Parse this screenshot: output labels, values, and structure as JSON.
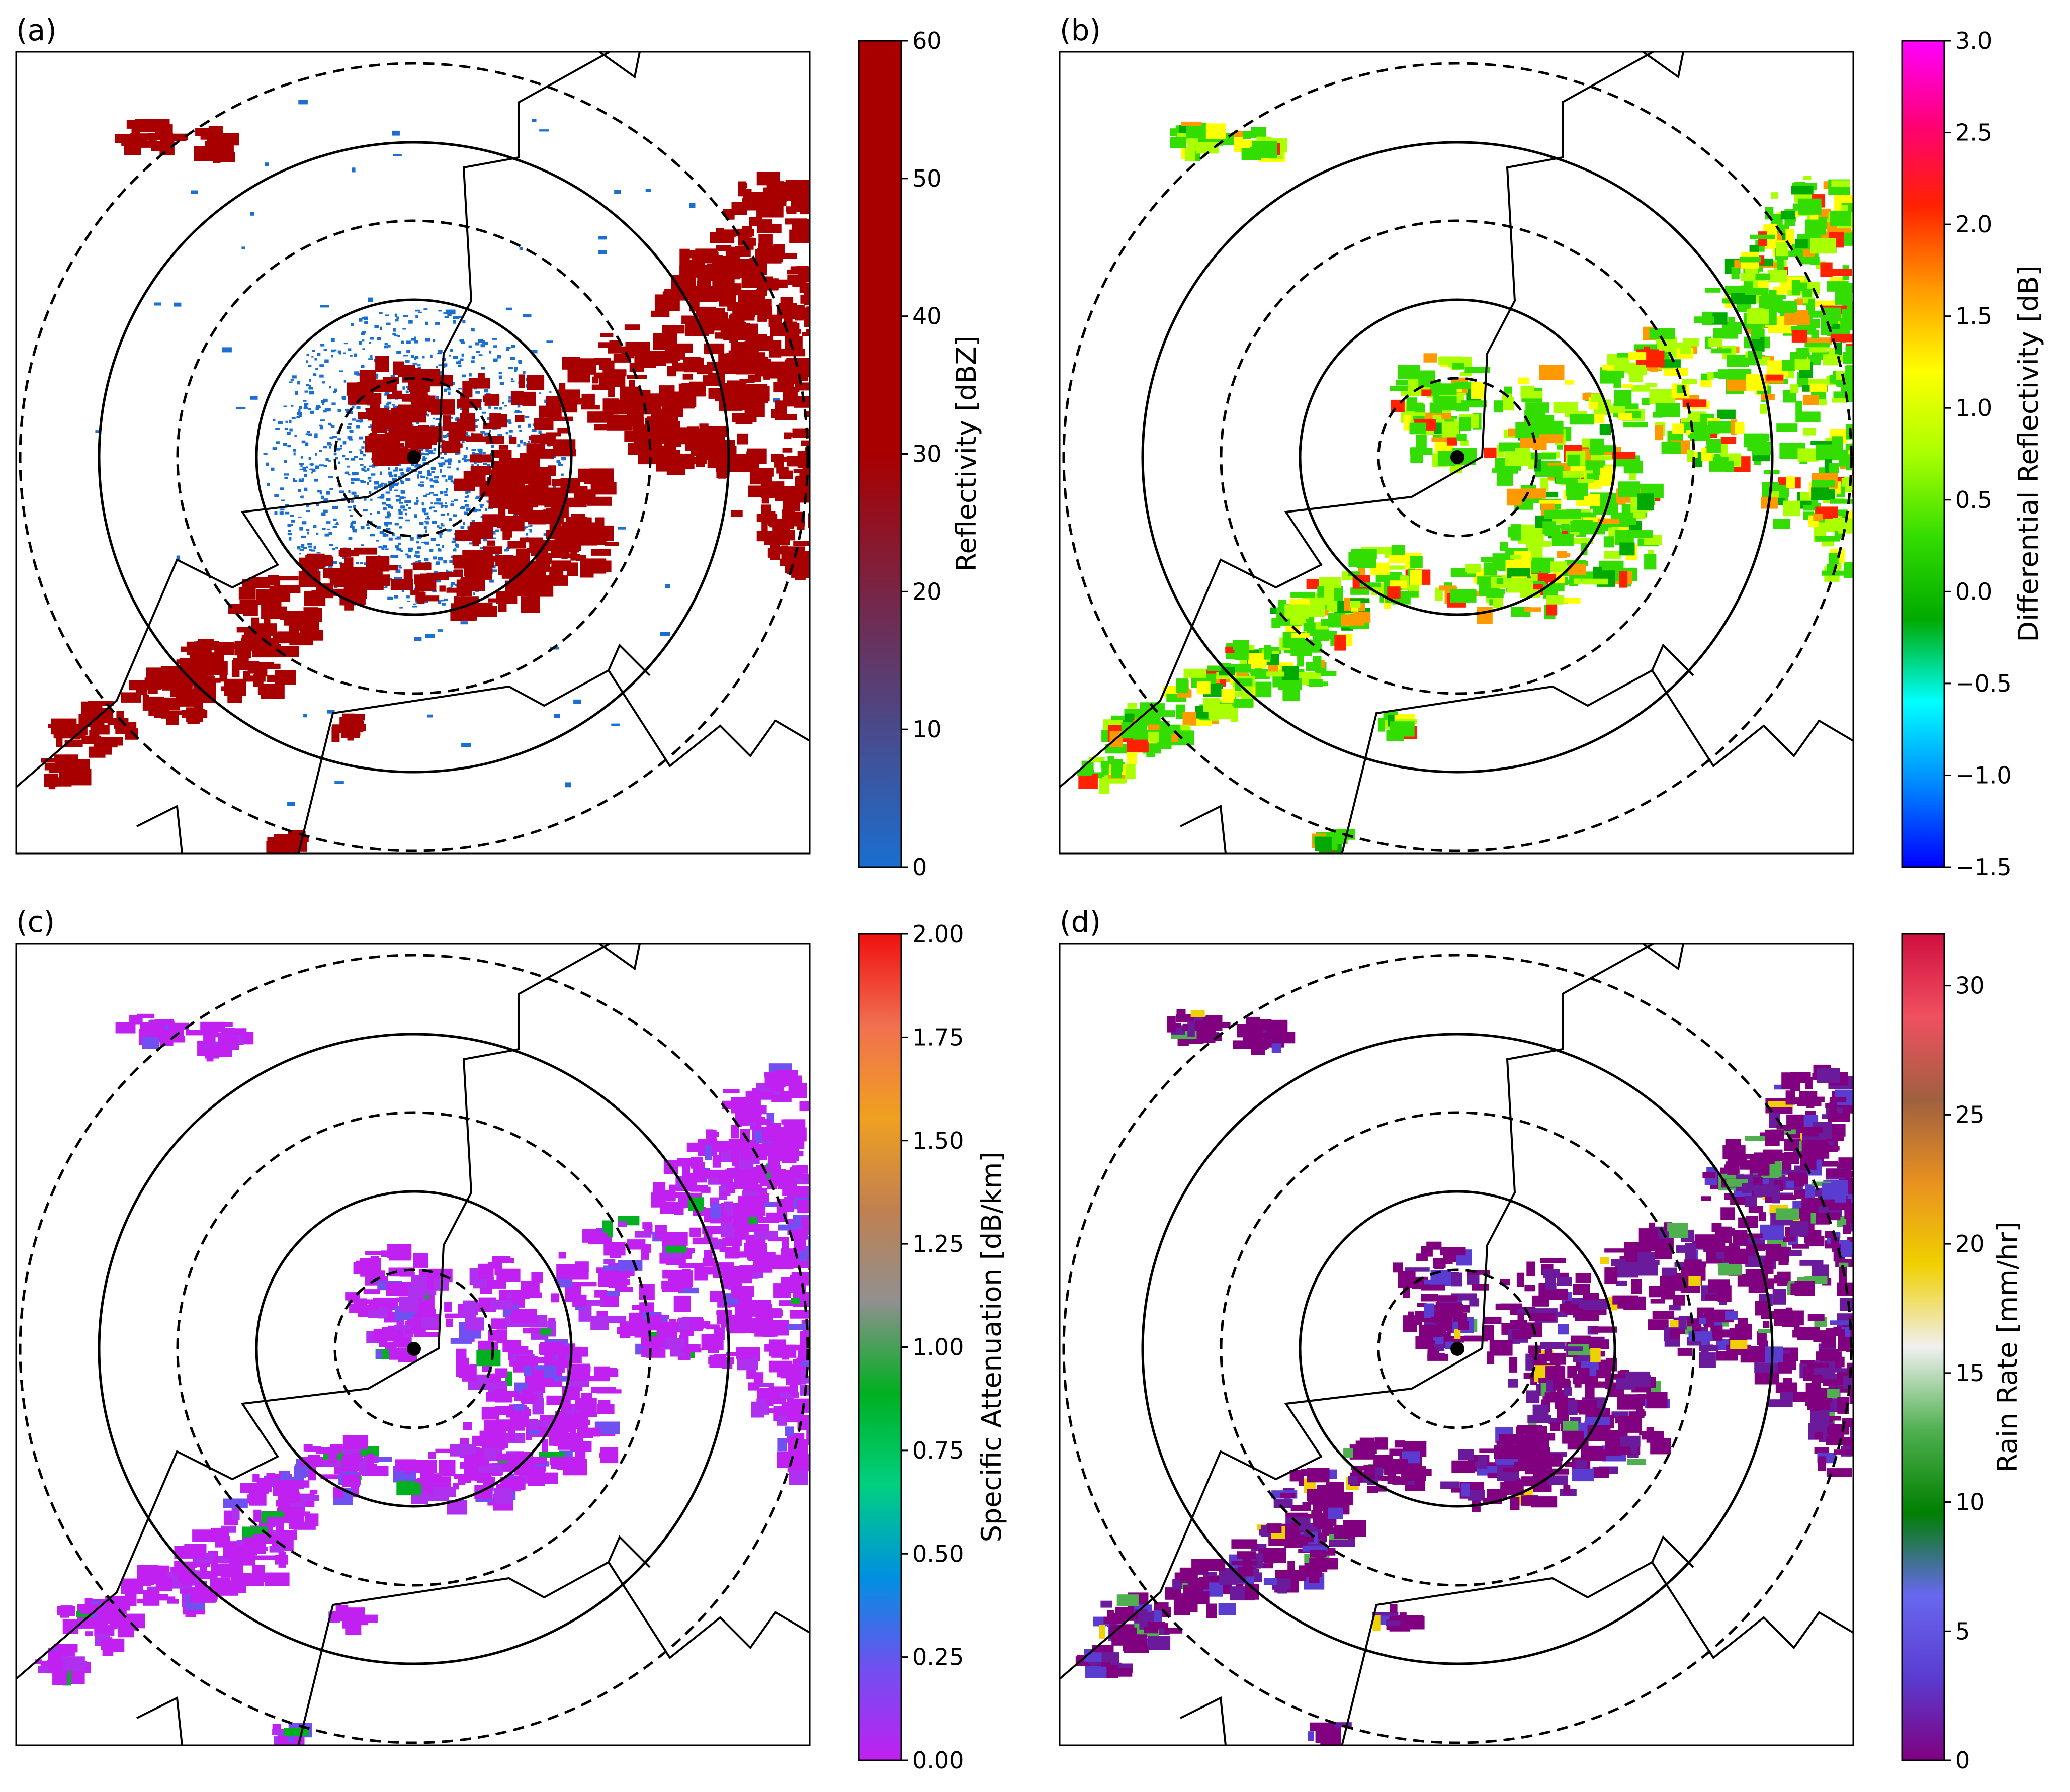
{
  "chart_data": [
    {
      "type": "heatmap",
      "panel": "(a)",
      "colorbar": {
        "label": "Reflectivity [dBZ]",
        "range": [
          0,
          60
        ],
        "ticks": [
          "0",
          "10",
          "20",
          "30",
          "40",
          "50",
          "60"
        ],
        "colors": [
          "#1a6fd0",
          "#a80000",
          "#a80000"
        ]
      },
      "echo_colors": [
        "#a80000",
        "#1a6fd0"
      ]
    },
    {
      "type": "heatmap",
      "panel": "(b)",
      "colorbar": {
        "label": "Differential Reflectivity [dB]",
        "range": [
          -1.5,
          3.0
        ],
        "ticks": [
          "−1.5",
          "−1.0",
          "−0.5",
          "0.0",
          "0.5",
          "1.0",
          "1.5",
          "2.0",
          "2.5",
          "3.0"
        ],
        "colors": [
          "#0000ff",
          "#0088ff",
          "#00ffff",
          "#00aa00",
          "#33dd00",
          "#aaff00",
          "#ffff00",
          "#ff9900",
          "#ff2200",
          "#ff0077",
          "#ff00ff"
        ]
      },
      "echo_colors": [
        "#33dd00",
        "#aaff00",
        "#ffff00",
        "#ff9900",
        "#ff2200",
        "#00aa00"
      ]
    },
    {
      "type": "heatmap",
      "panel": "(c)",
      "colorbar": {
        "label": "Specific Attenuation [dB/km]",
        "range": [
          0.0,
          2.0
        ],
        "ticks": [
          "0.00",
          "0.25",
          "0.50",
          "0.75",
          "1.00",
          "1.25",
          "1.50",
          "1.75",
          "2.00"
        ],
        "colors": [
          "#c020f0",
          "#7050f0",
          "#0090e0",
          "#00d080",
          "#00b020",
          "#909090",
          "#c08050",
          "#f0a020",
          "#f07050",
          "#f01010"
        ]
      },
      "echo_colors": [
        "#c020f0",
        "#b030f0",
        "#7050f0",
        "#00b020"
      ]
    },
    {
      "type": "heatmap",
      "panel": "(d)",
      "colorbar": {
        "label": "Rain Rate [mm/hr]",
        "range": [
          0,
          32
        ],
        "ticks": [
          "0",
          "5",
          "10",
          "15",
          "20",
          "25",
          "30"
        ],
        "colors": [
          "#800080",
          "#5a3cd0",
          "#6868f0",
          "#008000",
          "#50b050",
          "#f0f0f0",
          "#f0d000",
          "#e89020",
          "#a06040",
          "#f05060",
          "#d01040"
        ]
      },
      "echo_colors": [
        "#800080",
        "#6a1a9a",
        "#5a3cd0",
        "#50b050",
        "#f0d000"
      ]
    }
  ]
}
